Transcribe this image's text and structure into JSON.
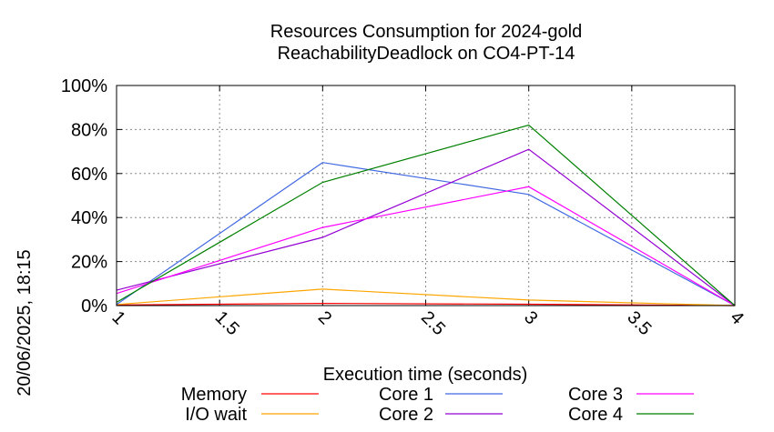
{
  "chart_data": {
    "type": "line",
    "title": "Resources Consumption for 2024-gold",
    "subtitle": "ReachabilityDeadlock on CO4-PT-14",
    "xlabel": "Execution time (seconds)",
    "ylabel": "",
    "side_label": "20/06/2025, 18:15",
    "xlim": [
      1,
      4
    ],
    "ylim": [
      0,
      100
    ],
    "x_ticks": [
      "1",
      "1.5",
      "2",
      "2.5",
      "3",
      "3.5",
      "4"
    ],
    "x_tick_values": [
      1,
      1.5,
      2,
      2.5,
      3,
      3.5,
      4
    ],
    "y_ticks": [
      "0%",
      "20%",
      "40%",
      "60%",
      "80%",
      "100%"
    ],
    "y_tick_values": [
      0,
      20,
      40,
      60,
      80,
      100
    ],
    "grid": true,
    "legend_position": "bottom",
    "x": [
      1,
      2,
      3,
      4
    ],
    "series": [
      {
        "name": "Memory",
        "color": "#ff0000",
        "values": [
          0.3,
          1.0,
          0.6,
          0
        ]
      },
      {
        "name": "I/O wait",
        "color": "#ffa500",
        "values": [
          0.5,
          7.5,
          2.5,
          0
        ]
      },
      {
        "name": "Core 1",
        "color": "#4169e1",
        "values": [
          0.5,
          65,
          50.5,
          0
        ]
      },
      {
        "name": "Core 2",
        "color": "#9400d3",
        "values": [
          7,
          31,
          71,
          0
        ]
      },
      {
        "name": "Core 3",
        "color": "#ff00ff",
        "values": [
          5.5,
          35.5,
          54,
          0
        ]
      },
      {
        "name": "Core 4",
        "color": "#008000",
        "values": [
          1.5,
          56,
          82,
          0
        ]
      }
    ]
  }
}
